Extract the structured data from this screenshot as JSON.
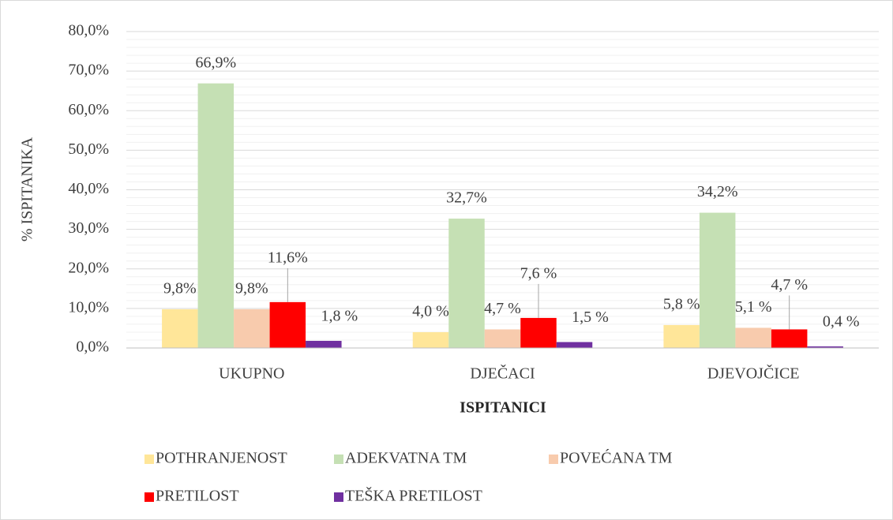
{
  "chart_data": {
    "type": "bar",
    "y_label": "% ISPITANIKA",
    "x_label": "ISPITANICI",
    "categories": [
      "UKUPNO",
      "DJEČACI",
      "DJEVOJČICE"
    ],
    "series": [
      {
        "name": "POTHRANJENOST",
        "color": "#ffe699",
        "values": [
          9.8,
          4.0,
          5.8
        ],
        "value_labels": [
          "9,8%",
          "4,0 %",
          "5,8 %"
        ]
      },
      {
        "name": "ADEKVATNA TM",
        "color": "#c5e0b4",
        "values": [
          66.9,
          32.7,
          34.2
        ],
        "value_labels": [
          "66,9%",
          "32,7%",
          "34,2%"
        ]
      },
      {
        "name": "POVEĆANA TM",
        "color": "#f8cbad",
        "values": [
          9.8,
          4.7,
          5.1
        ],
        "value_labels": [
          "9,8%",
          "4,7 %",
          "5,1 %"
        ]
      },
      {
        "name": "PRETILOST",
        "color": "#ff0000",
        "values": [
          11.6,
          7.6,
          4.7
        ],
        "value_labels": [
          "11,6%",
          "7,6 %",
          "4,7 %"
        ]
      },
      {
        "name": "TEŠKA PRETILOST",
        "color": "#7030a0",
        "values": [
          1.8,
          1.5,
          0.4
        ],
        "value_labels": [
          "1,8 %",
          "1,5 %",
          "0,4 %"
        ]
      }
    ],
    "ylim": [
      0,
      80
    ],
    "yticks": [
      {
        "value": 0,
        "label": "0,0%"
      },
      {
        "value": 10,
        "label": "10,0%"
      },
      {
        "value": 20,
        "label": "20,0%"
      },
      {
        "value": 30,
        "label": "30,0%"
      },
      {
        "value": 40,
        "label": "40,0%"
      },
      {
        "value": 50,
        "label": "50,0%"
      },
      {
        "value": 60,
        "label": "60,0%"
      },
      {
        "value": 70,
        "label": "70,0%"
      },
      {
        "value": 80,
        "label": "80,0%"
      }
    ],
    "yminorticks": [
      2,
      4,
      6,
      8,
      12,
      14,
      16,
      18,
      22,
      24,
      26,
      28,
      32,
      34,
      36,
      38,
      42,
      44,
      46,
      48,
      52,
      54,
      56,
      58,
      62,
      64,
      66,
      68,
      72,
      74,
      76,
      78
    ],
    "grid": true,
    "legend": "bottom"
  }
}
